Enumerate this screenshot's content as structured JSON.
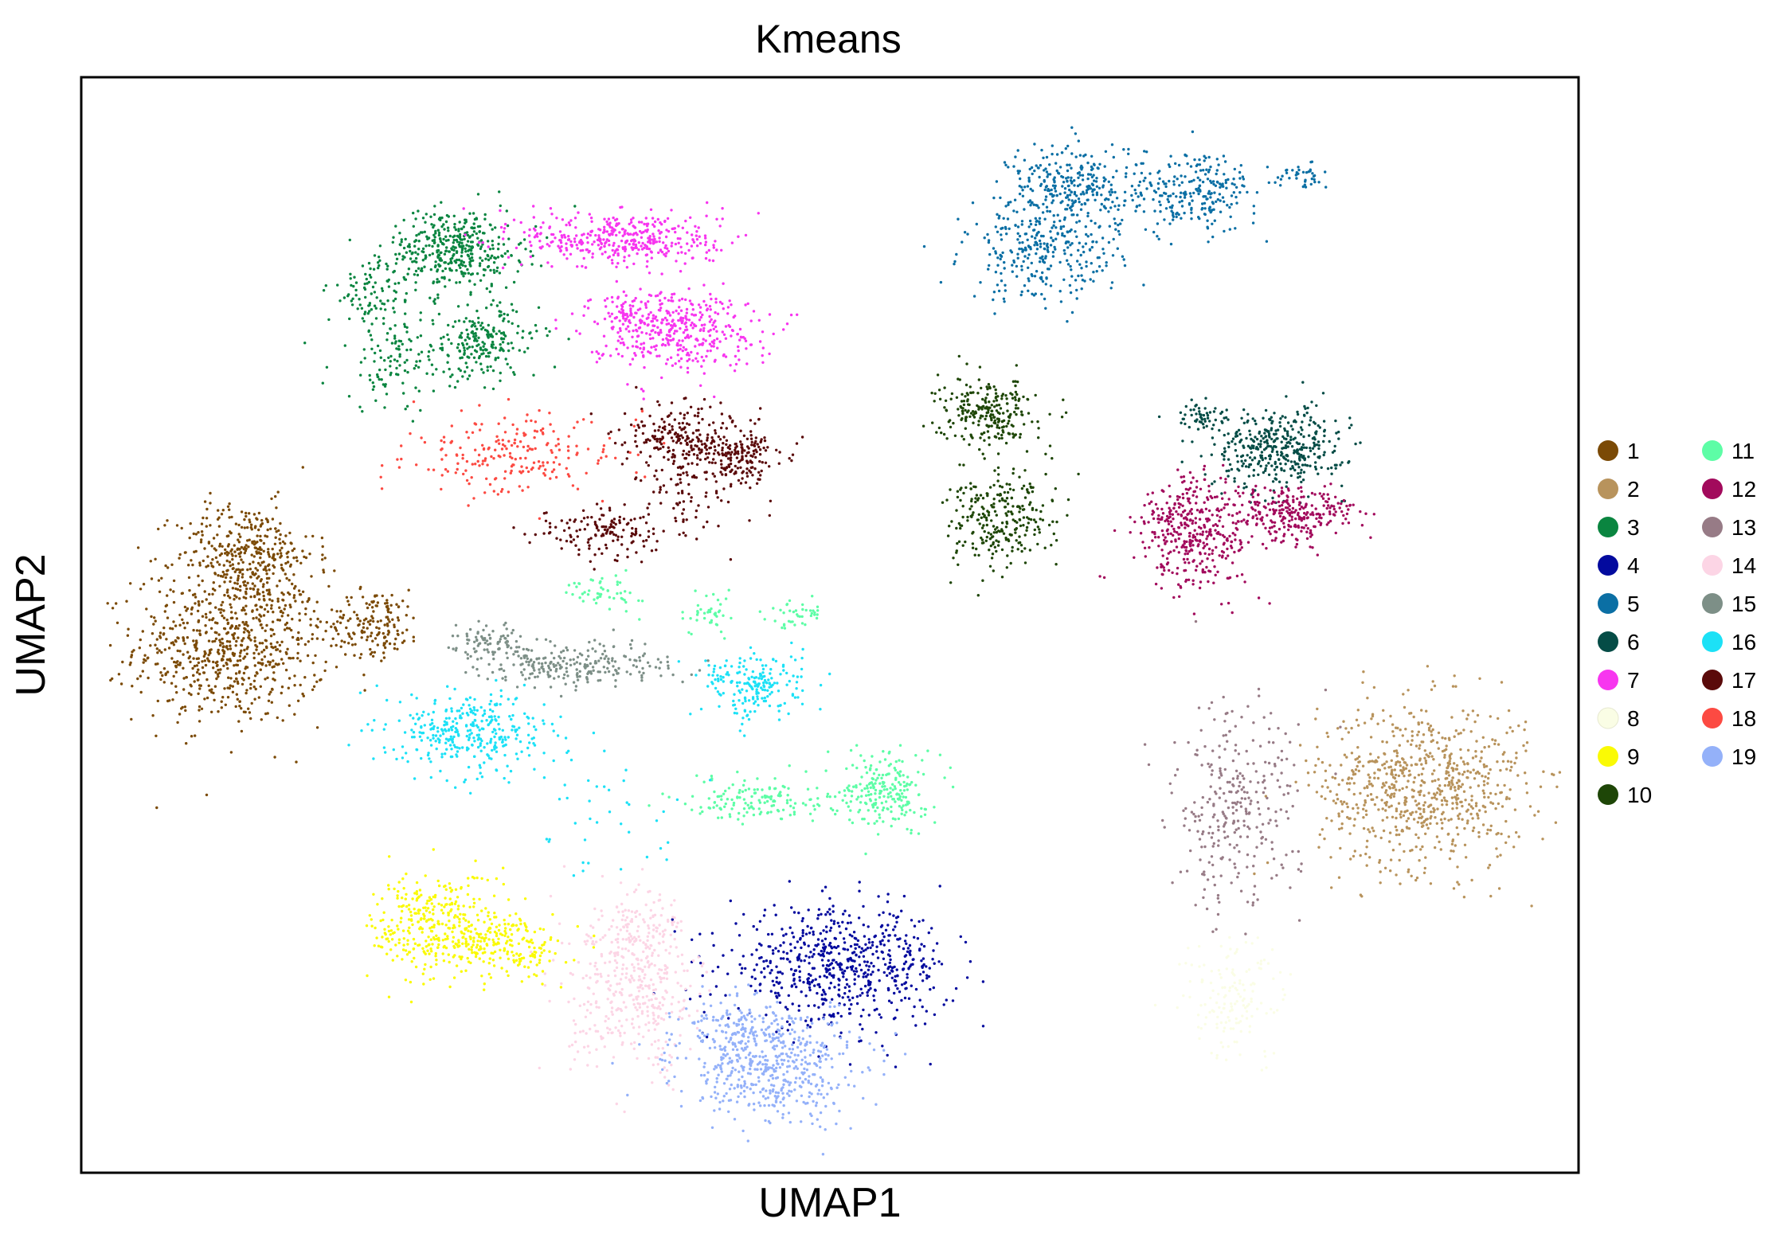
{
  "chart_data": {
    "type": "scatter",
    "title": "Kmeans",
    "xlabel": "UMAP1",
    "ylabel": "UMAP2",
    "xlim": [
      0,
      100
    ],
    "ylim": [
      0,
      100
    ],
    "grid": false,
    "ticks": false,
    "legend_position": "right, outside plot, two columns",
    "series": [
      {
        "name": "1",
        "color": "#7b4a06",
        "clusters": [
          {
            "x": 10.0,
            "y": 48.0,
            "sx": 3.2,
            "sy": 3.5,
            "n": 700
          },
          {
            "x": 11.0,
            "y": 56.5,
            "sx": 2.3,
            "sy": 2.3,
            "n": 350
          },
          {
            "x": 19.6,
            "y": 50.2,
            "sx": 1.6,
            "sy": 1.5,
            "n": 160
          }
        ]
      },
      {
        "name": "2",
        "color": "#b8935c",
        "clusters": [
          {
            "x": 89.6,
            "y": 35.3,
            "sx": 3.5,
            "sy": 3.8,
            "n": 750
          }
        ]
      },
      {
        "name": "3",
        "color": "#0a8540",
        "clusters": [
          {
            "x": 25.0,
            "y": 84.3,
            "sx": 2.2,
            "sy": 1.8,
            "n": 400
          },
          {
            "x": 26.8,
            "y": 75.8,
            "sx": 1.9,
            "sy": 1.7,
            "n": 210
          },
          {
            "x": 21.0,
            "y": 74.0,
            "sx": 2.2,
            "sy": 2.2,
            "n": 120
          },
          {
            "x": 19.7,
            "y": 80.5,
            "sx": 1.6,
            "sy": 1.6,
            "n": 90
          }
        ]
      },
      {
        "name": "4",
        "color": "#030a9e",
        "clusters": [
          {
            "x": 50.6,
            "y": 18.8,
            "sx": 3.7,
            "sy": 2.6,
            "n": 650
          }
        ]
      },
      {
        "name": "5",
        "color": "#0b6fa4",
        "clusters": [
          {
            "x": 66.5,
            "y": 90.0,
            "sx": 2.2,
            "sy": 2.0,
            "n": 300
          },
          {
            "x": 64.3,
            "y": 84.0,
            "sx": 2.6,
            "sy": 2.2,
            "n": 300
          },
          {
            "x": 74.5,
            "y": 89.5,
            "sx": 2.0,
            "sy": 1.8,
            "n": 230
          },
          {
            "x": 81.5,
            "y": 91.0,
            "sx": 0.9,
            "sy": 0.5,
            "n": 40
          }
        ]
      },
      {
        "name": "6",
        "color": "#054c46",
        "clusters": [
          {
            "x": 80.0,
            "y": 66.2,
            "sx": 2.2,
            "sy": 1.8,
            "n": 400
          },
          {
            "x": 74.5,
            "y": 69.0,
            "sx": 0.8,
            "sy": 0.7,
            "n": 50
          }
        ]
      },
      {
        "name": "7",
        "color": "#f736ef",
        "clusters": [
          {
            "x": 36.2,
            "y": 85.2,
            "sx": 3.3,
            "sy": 1.3,
            "n": 400
          },
          {
            "x": 39.5,
            "y": 77.0,
            "sx": 2.8,
            "sy": 1.8,
            "n": 400
          },
          {
            "x": 36.5,
            "y": 78.5,
            "sx": 1.0,
            "sy": 1.0,
            "n": 60
          }
        ]
      },
      {
        "name": "8",
        "color": "#fafde5",
        "clusters": [
          {
            "x": 77.0,
            "y": 15.8,
            "sx": 1.8,
            "sy": 2.8,
            "n": 150
          }
        ]
      },
      {
        "name": "9",
        "color": "#fafa04",
        "clusters": [
          {
            "x": 23.5,
            "y": 22.5,
            "sx": 2.0,
            "sy": 2.5,
            "n": 330
          },
          {
            "x": 28.5,
            "y": 20.8,
            "sx": 1.8,
            "sy": 1.6,
            "n": 200
          }
        ]
      },
      {
        "name": "10",
        "color": "#1e4607",
        "clusters": [
          {
            "x": 60.5,
            "y": 69.5,
            "sx": 1.6,
            "sy": 1.5,
            "n": 250
          },
          {
            "x": 61.5,
            "y": 59.5,
            "sx": 1.8,
            "sy": 2.2,
            "n": 270
          }
        ]
      },
      {
        "name": "11",
        "color": "#5dfda6",
        "clusters": [
          {
            "x": 53.7,
            "y": 35.0,
            "sx": 1.4,
            "sy": 1.8,
            "n": 220
          },
          {
            "x": 45.0,
            "y": 34.0,
            "sx": 2.5,
            "sy": 1.0,
            "n": 150
          },
          {
            "x": 35.0,
            "y": 53.0,
            "sx": 1.2,
            "sy": 0.8,
            "n": 50
          },
          {
            "x": 42.0,
            "y": 51.0,
            "sx": 0.8,
            "sy": 1.0,
            "n": 40
          },
          {
            "x": 48.0,
            "y": 51.0,
            "sx": 1.0,
            "sy": 0.6,
            "n": 40
          }
        ]
      },
      {
        "name": "12",
        "color": "#a20a5c",
        "clusters": [
          {
            "x": 74.5,
            "y": 58.5,
            "sx": 2.0,
            "sy": 2.6,
            "n": 400
          },
          {
            "x": 81.0,
            "y": 60.2,
            "sx": 2.0,
            "sy": 1.3,
            "n": 250
          }
        ]
      },
      {
        "name": "13",
        "color": "#977b86",
        "clusters": [
          {
            "x": 77.0,
            "y": 33.0,
            "sx": 2.2,
            "sy": 4.5,
            "n": 300
          }
        ]
      },
      {
        "name": "14",
        "color": "#fcd5e5",
        "clusters": [
          {
            "x": 37.0,
            "y": 16.5,
            "sx": 2.2,
            "sy": 3.6,
            "n": 400
          },
          {
            "x": 37.5,
            "y": 23.0,
            "sx": 1.6,
            "sy": 1.5,
            "n": 90
          }
        ]
      },
      {
        "name": "15",
        "color": "#7d8f87",
        "clusters": [
          {
            "x": 33.0,
            "y": 46.3,
            "sx": 3.2,
            "sy": 1.0,
            "n": 240
          },
          {
            "x": 27.0,
            "y": 48.5,
            "sx": 1.2,
            "sy": 0.9,
            "n": 80
          }
        ]
      },
      {
        "name": "16",
        "color": "#1ce1f6",
        "clusters": [
          {
            "x": 26.0,
            "y": 40.2,
            "sx": 2.6,
            "sy": 1.8,
            "n": 340
          },
          {
            "x": 45.0,
            "y": 44.5,
            "sx": 1.7,
            "sy": 1.5,
            "n": 200
          },
          {
            "x": 36.0,
            "y": 33.0,
            "sx": 3.0,
            "sy": 3.0,
            "n": 40
          }
        ]
      },
      {
        "name": "17",
        "color": "#5a0a0a",
        "clusters": [
          {
            "x": 40.0,
            "y": 67.0,
            "sx": 1.9,
            "sy": 1.6,
            "n": 220
          },
          {
            "x": 44.0,
            "y": 65.5,
            "sx": 1.5,
            "sy": 1.5,
            "n": 180
          },
          {
            "x": 35.0,
            "y": 58.5,
            "sx": 2.3,
            "sy": 1.2,
            "n": 150
          },
          {
            "x": 41.0,
            "y": 62.0,
            "sx": 1.5,
            "sy": 2.0,
            "n": 60
          }
        ]
      },
      {
        "name": "18",
        "color": "#fc4a42",
        "clusters": [
          {
            "x": 29.0,
            "y": 65.5,
            "sx": 3.5,
            "sy": 1.7,
            "n": 220
          }
        ]
      },
      {
        "name": "19",
        "color": "#94b1f9",
        "clusters": [
          {
            "x": 46.0,
            "y": 9.8,
            "sx": 3.0,
            "sy": 2.6,
            "n": 520
          },
          {
            "x": 44.0,
            "y": 13.0,
            "sx": 2.0,
            "sy": 1.5,
            "n": 100
          }
        ]
      }
    ]
  }
}
